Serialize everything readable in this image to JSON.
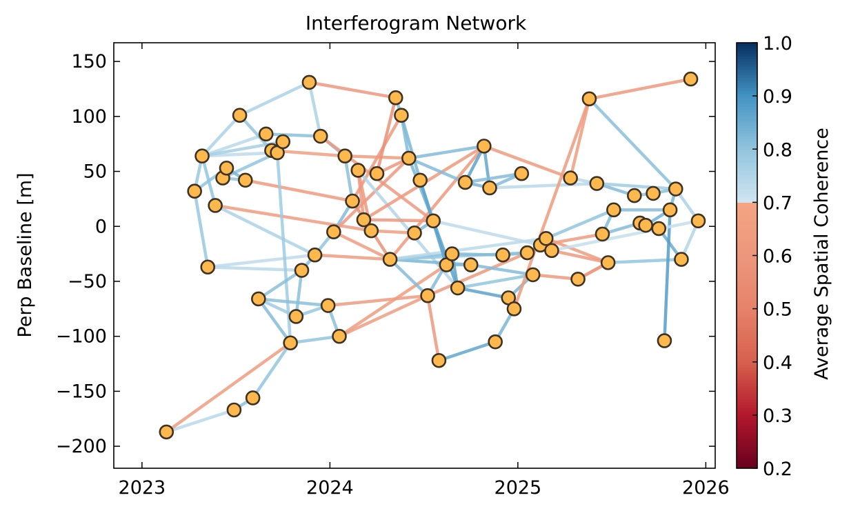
{
  "chart_data": {
    "type": "scatter",
    "title": "Interferogram Network",
    "xlabel": "",
    "ylabel": "Perp Baseline [m]",
    "xlim": [
      2022.85,
      2026.05
    ],
    "ylim": [
      -220,
      167
    ],
    "xticks": [
      2023,
      2024,
      2025,
      2026
    ],
    "xtick_labels": [
      "2023",
      "2024",
      "2025",
      "2026"
    ],
    "yticks": [
      150,
      100,
      50,
      0,
      -50,
      -100,
      -150,
      -200
    ],
    "ytick_labels": [
      "150",
      "100",
      "50",
      "0",
      "−50",
      "−100",
      "−150",
      "−200"
    ],
    "grid": false,
    "colorbar": {
      "label": "Average Spatial Coherence",
      "range": [
        0.2,
        1.0
      ],
      "ticks": [
        0.2,
        0.3,
        0.4,
        0.5,
        0.6,
        0.7,
        0.8,
        0.9,
        1.0
      ],
      "tick_labels": [
        "0.2",
        "0.3",
        "0.4",
        "0.5",
        "0.6",
        "0.7",
        "0.8",
        "0.9",
        "1.0"
      ],
      "colormap": "RdBu"
    },
    "marker_color": "#ffb84d",
    "marker_edge_color": "#3d3324",
    "points": [
      {
        "x": 2023.13,
        "y": -187
      },
      {
        "x": 2023.28,
        "y": 32
      },
      {
        "x": 2023.32,
        "y": 64
      },
      {
        "x": 2023.35,
        "y": -37
      },
      {
        "x": 2023.39,
        "y": 19
      },
      {
        "x": 2023.43,
        "y": 44
      },
      {
        "x": 2023.45,
        "y": 53
      },
      {
        "x": 2023.49,
        "y": -167
      },
      {
        "x": 2023.52,
        "y": 101
      },
      {
        "x": 2023.55,
        "y": 42
      },
      {
        "x": 2023.59,
        "y": -156
      },
      {
        "x": 2023.62,
        "y": -66
      },
      {
        "x": 2023.66,
        "y": 84
      },
      {
        "x": 2023.69,
        "y": 69
      },
      {
        "x": 2023.72,
        "y": 67
      },
      {
        "x": 2023.75,
        "y": 77
      },
      {
        "x": 2023.79,
        "y": -106
      },
      {
        "x": 2023.82,
        "y": -82
      },
      {
        "x": 2023.85,
        "y": -40
      },
      {
        "x": 2023.89,
        "y": 131
      },
      {
        "x": 2023.92,
        "y": -26
      },
      {
        "x": 2023.95,
        "y": 82
      },
      {
        "x": 2023.99,
        "y": -72
      },
      {
        "x": 2024.02,
        "y": -5
      },
      {
        "x": 2024.05,
        "y": -100
      },
      {
        "x": 2024.08,
        "y": 64
      },
      {
        "x": 2024.12,
        "y": 23
      },
      {
        "x": 2024.15,
        "y": 51
      },
      {
        "x": 2024.18,
        "y": 6
      },
      {
        "x": 2024.22,
        "y": -4
      },
      {
        "x": 2024.25,
        "y": 48
      },
      {
        "x": 2024.32,
        "y": -30
      },
      {
        "x": 2024.35,
        "y": 117
      },
      {
        "x": 2024.38,
        "y": 101
      },
      {
        "x": 2024.42,
        "y": 62
      },
      {
        "x": 2024.45,
        "y": -6
      },
      {
        "x": 2024.48,
        "y": 42
      },
      {
        "x": 2024.52,
        "y": -63
      },
      {
        "x": 2024.55,
        "y": 5
      },
      {
        "x": 2024.58,
        "y": -122
      },
      {
        "x": 2024.62,
        "y": -35
      },
      {
        "x": 2024.65,
        "y": -25
      },
      {
        "x": 2024.68,
        "y": -56
      },
      {
        "x": 2024.72,
        "y": 40
      },
      {
        "x": 2024.75,
        "y": -35
      },
      {
        "x": 2024.82,
        "y": 73
      },
      {
        "x": 2024.85,
        "y": 35
      },
      {
        "x": 2024.88,
        "y": -105
      },
      {
        "x": 2024.92,
        "y": -26
      },
      {
        "x": 2024.95,
        "y": -65
      },
      {
        "x": 2024.98,
        "y": -75
      },
      {
        "x": 2025.02,
        "y": 48
      },
      {
        "x": 2025.05,
        "y": -24
      },
      {
        "x": 2025.08,
        "y": -44
      },
      {
        "x": 2025.12,
        "y": -17
      },
      {
        "x": 2025.15,
        "y": -11
      },
      {
        "x": 2025.18,
        "y": -22
      },
      {
        "x": 2025.28,
        "y": 44
      },
      {
        "x": 2025.32,
        "y": -48
      },
      {
        "x": 2025.38,
        "y": 116
      },
      {
        "x": 2025.42,
        "y": 39
      },
      {
        "x": 2025.45,
        "y": -7
      },
      {
        "x": 2025.48,
        "y": -33
      },
      {
        "x": 2025.51,
        "y": 15
      },
      {
        "x": 2025.62,
        "y": 28
      },
      {
        "x": 2025.65,
        "y": 3
      },
      {
        "x": 2025.68,
        "y": 1
      },
      {
        "x": 2025.72,
        "y": 30
      },
      {
        "x": 2025.75,
        "y": -2
      },
      {
        "x": 2025.78,
        "y": -104
      },
      {
        "x": 2025.81,
        "y": 15
      },
      {
        "x": 2025.84,
        "y": 34
      },
      {
        "x": 2025.87,
        "y": -30
      },
      {
        "x": 2025.92,
        "y": 134
      },
      {
        "x": 2025.96,
        "y": 5
      }
    ],
    "edges": [
      [
        0,
        7,
        0.74
      ],
      [
        0,
        16,
        0.64
      ],
      [
        7,
        10,
        0.81
      ],
      [
        10,
        16,
        0.8
      ],
      [
        1,
        2,
        0.79
      ],
      [
        1,
        3,
        0.79
      ],
      [
        2,
        4,
        0.8
      ],
      [
        1,
        6,
        0.8
      ],
      [
        2,
        8,
        0.76
      ],
      [
        2,
        12,
        0.74
      ],
      [
        2,
        14,
        0.73
      ],
      [
        2,
        15,
        0.77
      ],
      [
        3,
        18,
        0.74
      ],
      [
        3,
        20,
        0.73
      ],
      [
        4,
        29,
        0.64
      ],
      [
        4,
        20,
        0.76
      ],
      [
        5,
        14,
        0.8
      ],
      [
        5,
        9,
        0.8
      ],
      [
        6,
        9,
        0.83
      ],
      [
        8,
        19,
        0.76
      ],
      [
        9,
        26,
        0.63
      ],
      [
        8,
        13,
        0.8
      ],
      [
        12,
        21,
        0.81
      ],
      [
        13,
        25,
        0.66
      ],
      [
        14,
        16,
        0.78
      ],
      [
        11,
        18,
        0.81
      ],
      [
        11,
        16,
        0.82
      ],
      [
        11,
        22,
        0.81
      ],
      [
        11,
        17,
        0.78
      ],
      [
        17,
        18,
        0.81
      ],
      [
        18,
        20,
        0.82
      ],
      [
        16,
        24,
        0.8
      ],
      [
        17,
        22,
        0.79
      ],
      [
        22,
        24,
        0.81
      ],
      [
        22,
        37,
        0.63
      ],
      [
        24,
        37,
        0.64
      ],
      [
        24,
        40,
        0.64
      ],
      [
        19,
        21,
        0.76
      ],
      [
        19,
        32,
        0.61
      ],
      [
        21,
        25,
        0.81
      ],
      [
        21,
        38,
        0.62
      ],
      [
        20,
        31,
        0.64
      ],
      [
        20,
        23,
        0.8
      ],
      [
        23,
        26,
        0.82
      ],
      [
        23,
        31,
        0.64
      ],
      [
        23,
        34,
        0.61
      ],
      [
        25,
        26,
        0.81
      ],
      [
        25,
        34,
        0.64
      ],
      [
        26,
        33,
        0.62
      ],
      [
        26,
        31,
        0.57
      ],
      [
        27,
        29,
        0.62
      ],
      [
        27,
        42,
        0.75
      ],
      [
        27,
        28,
        0.62
      ],
      [
        28,
        38,
        0.6
      ],
      [
        29,
        35,
        0.65
      ],
      [
        28,
        45,
        0.62
      ],
      [
        30,
        32,
        0.57
      ],
      [
        30,
        34,
        0.61
      ],
      [
        31,
        45,
        0.62
      ],
      [
        31,
        37,
        0.82
      ],
      [
        31,
        41,
        0.82
      ],
      [
        31,
        44,
        0.83
      ],
      [
        31,
        52,
        0.79
      ],
      [
        31,
        55,
        0.74
      ],
      [
        32,
        33,
        0.82
      ],
      [
        33,
        34,
        0.82
      ],
      [
        33,
        36,
        0.83
      ],
      [
        34,
        45,
        0.82
      ],
      [
        34,
        43,
        0.82
      ],
      [
        34,
        38,
        0.83
      ],
      [
        35,
        38,
        0.83
      ],
      [
        36,
        40,
        0.87
      ],
      [
        36,
        38,
        0.86
      ],
      [
        37,
        39,
        0.61
      ],
      [
        37,
        41,
        0.82
      ],
      [
        37,
        52,
        0.62
      ],
      [
        38,
        40,
        0.85
      ],
      [
        38,
        42,
        0.87
      ],
      [
        38,
        54,
        0.73
      ],
      [
        39,
        47,
        0.86
      ],
      [
        40,
        44,
        0.82
      ],
      [
        41,
        48,
        0.82
      ],
      [
        41,
        42,
        0.87
      ],
      [
        42,
        49,
        0.87
      ],
      [
        42,
        53,
        0.8
      ],
      [
        43,
        46,
        0.83
      ],
      [
        44,
        53,
        0.82
      ],
      [
        45,
        46,
        0.86
      ],
      [
        45,
        43,
        0.87
      ],
      [
        45,
        57,
        0.63
      ],
      [
        46,
        51,
        0.82
      ],
      [
        46,
        60,
        0.74
      ],
      [
        47,
        50,
        0.83
      ],
      [
        48,
        52,
        0.81
      ],
      [
        49,
        53,
        0.83
      ],
      [
        50,
        59,
        0.63
      ],
      [
        51,
        43,
        0.82
      ],
      [
        52,
        54,
        0.83
      ],
      [
        53,
        58,
        0.62
      ],
      [
        54,
        61,
        0.63
      ],
      [
        55,
        62,
        0.63
      ],
      [
        55,
        63,
        0.8
      ],
      [
        56,
        62,
        0.62
      ],
      [
        57,
        60,
        0.74
      ],
      [
        58,
        62,
        0.62
      ],
      [
        59,
        73,
        0.62
      ],
      [
        59,
        71,
        0.81
      ],
      [
        60,
        64,
        0.82
      ],
      [
        60,
        71,
        0.78
      ],
      [
        61,
        63,
        0.82
      ],
      [
        61,
        65,
        0.82
      ],
      [
        62,
        72,
        0.8
      ],
      [
        63,
        70,
        0.82
      ],
      [
        64,
        67,
        0.8
      ],
      [
        65,
        68,
        0.8
      ],
      [
        66,
        70,
        0.84
      ],
      [
        67,
        71,
        0.81
      ],
      [
        68,
        72,
        0.85
      ],
      [
        69,
        70,
        0.88
      ],
      [
        70,
        71,
        0.83
      ],
      [
        71,
        74,
        0.76
      ],
      [
        72,
        74,
        0.75
      ],
      [
        74,
        56,
        0.72
      ],
      [
        57,
        59,
        0.64
      ],
      [
        62,
        58,
        0.62
      ]
    ]
  }
}
